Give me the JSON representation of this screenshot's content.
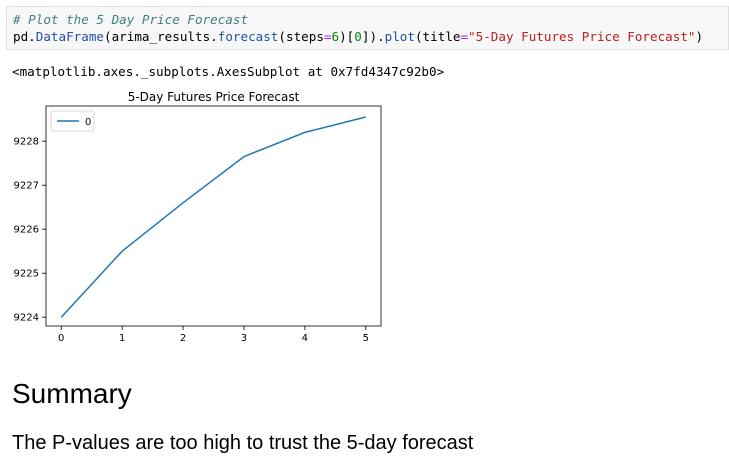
{
  "code_cell": {
    "comment": "# Plot the 5 Day Price Forecast",
    "line2": {
      "p1": "pd.",
      "p2": "DataFrame",
      "p3": "(arima_results.",
      "p4": "forecast",
      "p5": "(steps",
      "p6": "=",
      "p7": "6",
      "p8": ")[",
      "p9": "0",
      "p10": "]).",
      "p11": "plot",
      "p12": "(title",
      "p13": "=",
      "p14": "\"5-Day Futures Price Forecast\"",
      "p15": ")"
    }
  },
  "output_text": "<matplotlib.axes._subplots.AxesSubplot at 0x7fd4347c92b0>",
  "chart_data": {
    "type": "line",
    "title": "5-Day Futures Price Forecast",
    "x": [
      0,
      1,
      2,
      3,
      4,
      5
    ],
    "series": [
      {
        "name": "0",
        "values": [
          9224.0,
          9225.5,
          9226.6,
          9227.65,
          9228.2,
          9228.55
        ],
        "color": "#1f77b4"
      }
    ],
    "xlim": [
      -0.25,
      5.25
    ],
    "ylim": [
      9223.8,
      9228.8
    ],
    "xticks": [
      0,
      1,
      2,
      3,
      4,
      5
    ],
    "yticks": [
      9224,
      9225,
      9226,
      9227,
      9228
    ],
    "legend": "upper-left",
    "grid": false
  },
  "markdown": {
    "h1": "Summary",
    "h3": "The P-values are too high to trust the 5-day forecast"
  }
}
